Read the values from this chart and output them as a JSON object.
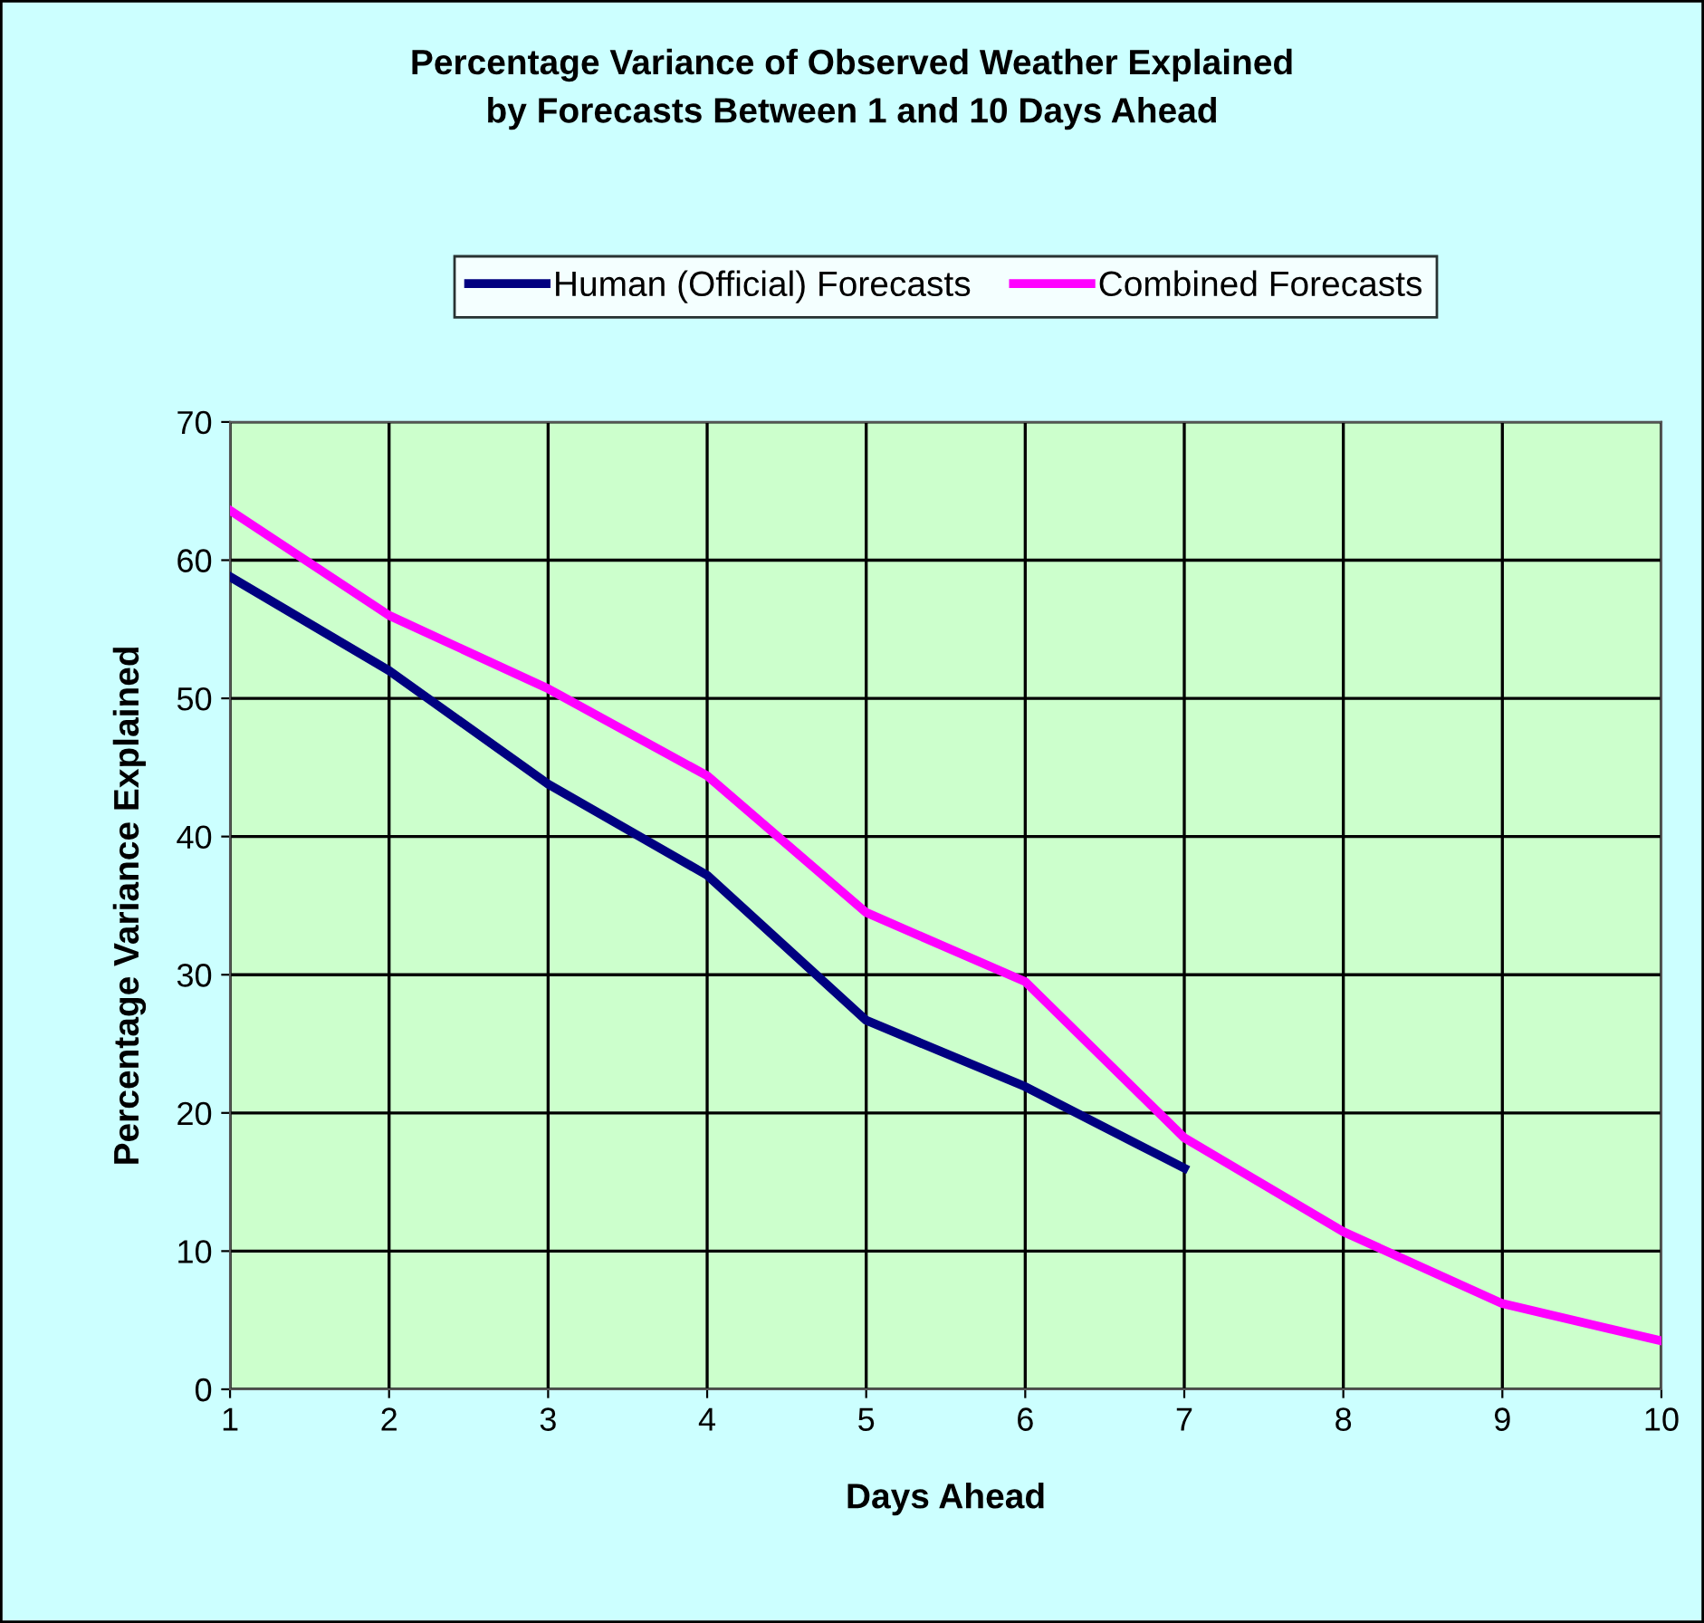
{
  "chart_data": {
    "type": "line",
    "title": "Percentage Variance of Observed Weather Explained\nby Forecasts Between 1 and 10 Days Ahead",
    "xlabel": "Days Ahead",
    "ylabel": "Percentage Variance Explained",
    "x": [
      1,
      2,
      3,
      4,
      5,
      6,
      7,
      8,
      9,
      10
    ],
    "series": [
      {
        "name": "Human (Official) Forecasts",
        "color": "#000080",
        "values": [
          58.8,
          52,
          43.8,
          37.2,
          26.7,
          21.9,
          16,
          null,
          null,
          null
        ]
      },
      {
        "name": "Combined Forecasts",
        "color": "#ff00ff",
        "values": [
          63.6,
          56,
          50.7,
          44.4,
          34.5,
          29.5,
          18.2,
          11.4,
          6.2,
          3.5
        ]
      }
    ],
    "xlim": [
      1,
      10
    ],
    "xticks": [
      1,
      2,
      3,
      4,
      5,
      6,
      7,
      8,
      9,
      10
    ],
    "ylim": [
      0,
      70
    ],
    "yticks": [
      0,
      10,
      20,
      30,
      40,
      50,
      60,
      70
    ],
    "grid": true,
    "legend": "top",
    "marker": "none",
    "line_style": "solid"
  }
}
